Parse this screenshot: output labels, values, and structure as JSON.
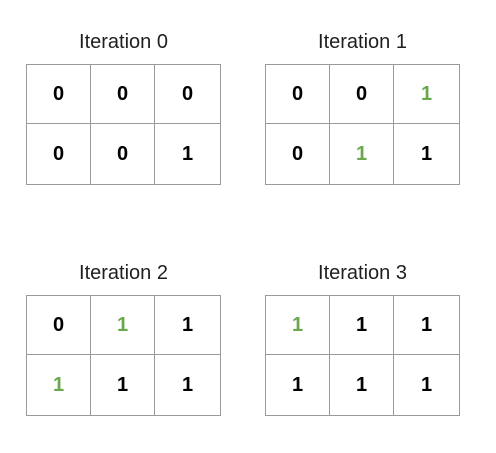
{
  "colors": {
    "changed_value": "#6aa84f",
    "value": "#000000",
    "grid_line": "#9a9a9a"
  },
  "panels": [
    {
      "title": "Iteration 0",
      "rows": [
        [
          {
            "value": "0",
            "new": false
          },
          {
            "value": "0",
            "new": false
          },
          {
            "value": "0",
            "new": false
          }
        ],
        [
          {
            "value": "0",
            "new": false
          },
          {
            "value": "0",
            "new": false
          },
          {
            "value": "1",
            "new": false
          }
        ]
      ]
    },
    {
      "title": "Iteration 1",
      "rows": [
        [
          {
            "value": "0",
            "new": false
          },
          {
            "value": "0",
            "new": false
          },
          {
            "value": "1",
            "new": true
          }
        ],
        [
          {
            "value": "0",
            "new": false
          },
          {
            "value": "1",
            "new": true
          },
          {
            "value": "1",
            "new": false
          }
        ]
      ]
    },
    {
      "title": "Iteration 2",
      "rows": [
        [
          {
            "value": "0",
            "new": false
          },
          {
            "value": "1",
            "new": true
          },
          {
            "value": "1",
            "new": false
          }
        ],
        [
          {
            "value": "1",
            "new": true
          },
          {
            "value": "1",
            "new": false
          },
          {
            "value": "1",
            "new": false
          }
        ]
      ]
    },
    {
      "title": "Iteration 3",
      "rows": [
        [
          {
            "value": "1",
            "new": true
          },
          {
            "value": "1",
            "new": false
          },
          {
            "value": "1",
            "new": false
          }
        ],
        [
          {
            "value": "1",
            "new": false
          },
          {
            "value": "1",
            "new": false
          },
          {
            "value": "1",
            "new": false
          }
        ]
      ]
    }
  ]
}
